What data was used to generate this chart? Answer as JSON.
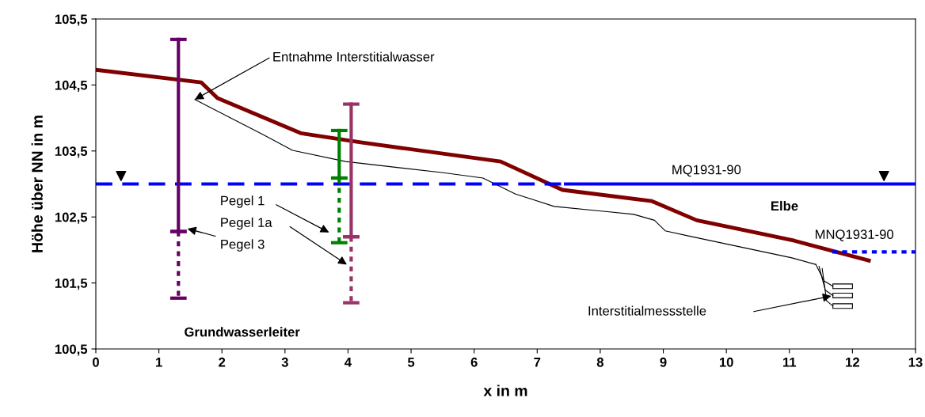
{
  "chart_data": {
    "type": "line",
    "xlabel": "x in m",
    "ylabel": "Höhe über NN in m",
    "xlim": [
      0,
      13
    ],
    "xticks": [
      0,
      1,
      2,
      3,
      4,
      5,
      6,
      7,
      8,
      9,
      10,
      11,
      12,
      13
    ],
    "ylim": [
      100.5,
      105.5
    ],
    "yticks": [
      {
        "value": 100.5,
        "label": "100,5"
      },
      {
        "value": 101.5,
        "label": "101,5"
      },
      {
        "value": 102.5,
        "label": "102,5"
      },
      {
        "value": 103.5,
        "label": "103,5"
      },
      {
        "value": 104.5,
        "label": "104,5"
      },
      {
        "value": 105.5,
        "label": "105,5"
      }
    ],
    "grid": false,
    "legend": false,
    "series": [
      {
        "color": "#800000",
        "x": [
          0,
          1.67,
          1.93,
          3.25,
          4.2,
          6.42,
          7.4,
          8.82,
          9.53,
          10.18,
          11.08,
          12.26
        ],
        "values": [
          104.73,
          104.54,
          104.3,
          103.77,
          103.63,
          103.34,
          102.91,
          102.74,
          102.45,
          102.32,
          102.14,
          101.84
        ]
      },
      {
        "color": "#000000",
        "x": [
          1.57,
          2.65,
          3.12,
          3.96,
          5.51,
          6.14,
          6.65,
          7.27,
          8.53,
          8.86,
          9.03,
          9.41,
          11.04,
          11.42
        ],
        "values": [
          104.28,
          103.75,
          103.51,
          103.34,
          103.17,
          103.09,
          102.85,
          102.66,
          102.54,
          102.45,
          102.29,
          102.21,
          101.88,
          101.78
        ]
      },
      {
        "color": "#0000ff",
        "line_style": "dashed",
        "x": [
          0,
          7.45
        ],
        "values": [
          103.0,
          103.0
        ]
      },
      {
        "color": "#0000ff",
        "line_style": "solid",
        "x": [
          7.45,
          13
        ],
        "values": [
          103.0,
          103.0
        ]
      },
      {
        "color": "#0000ff",
        "line_style": "dotted",
        "x": [
          11.68,
          13
        ],
        "values": [
          101.97,
          101.97
        ]
      },
      {
        "color": "#660066",
        "line_style": "solid",
        "x": [
          1.31,
          1.31
        ],
        "values": [
          105.19,
          102.28
        ]
      },
      {
        "color": "#660066",
        "line_style": "dotted",
        "x": [
          1.31,
          1.31
        ],
        "values": [
          102.28,
          101.27
        ]
      },
      {
        "color": "#008000",
        "line_style": "solid",
        "x": [
          3.86,
          3.86
        ],
        "values": [
          103.81,
          103.09
        ]
      },
      {
        "color": "#008000",
        "line_style": "dotted",
        "x": [
          3.86,
          3.86
        ],
        "values": [
          103.09,
          102.11
        ]
      },
      {
        "color": "#993366",
        "line_style": "solid",
        "x": [
          4.05,
          4.05
        ],
        "values": [
          104.21,
          102.2
        ]
      },
      {
        "color": "#993366",
        "line_style": "dotted",
        "x": [
          4.05,
          4.05
        ],
        "values": [
          102.2,
          101.2
        ]
      },
      {
        "type": "scatter",
        "marker": "triangle",
        "color": "#000000",
        "x": [
          0.4,
          12.5
        ],
        "values": [
          103.12,
          103.12
        ]
      }
    ],
    "annotations": [
      {
        "text": "Entnahme Interstitialwasser",
        "x": 1.57,
        "y": 104.28
      },
      "Pegel 1",
      "Pegel 1a",
      "Pegel 3",
      "Interstitialmessstelle",
      "MQ1931-90",
      "Elbe",
      "MNQ1931-90",
      "Grundwasserleiter"
    ]
  }
}
